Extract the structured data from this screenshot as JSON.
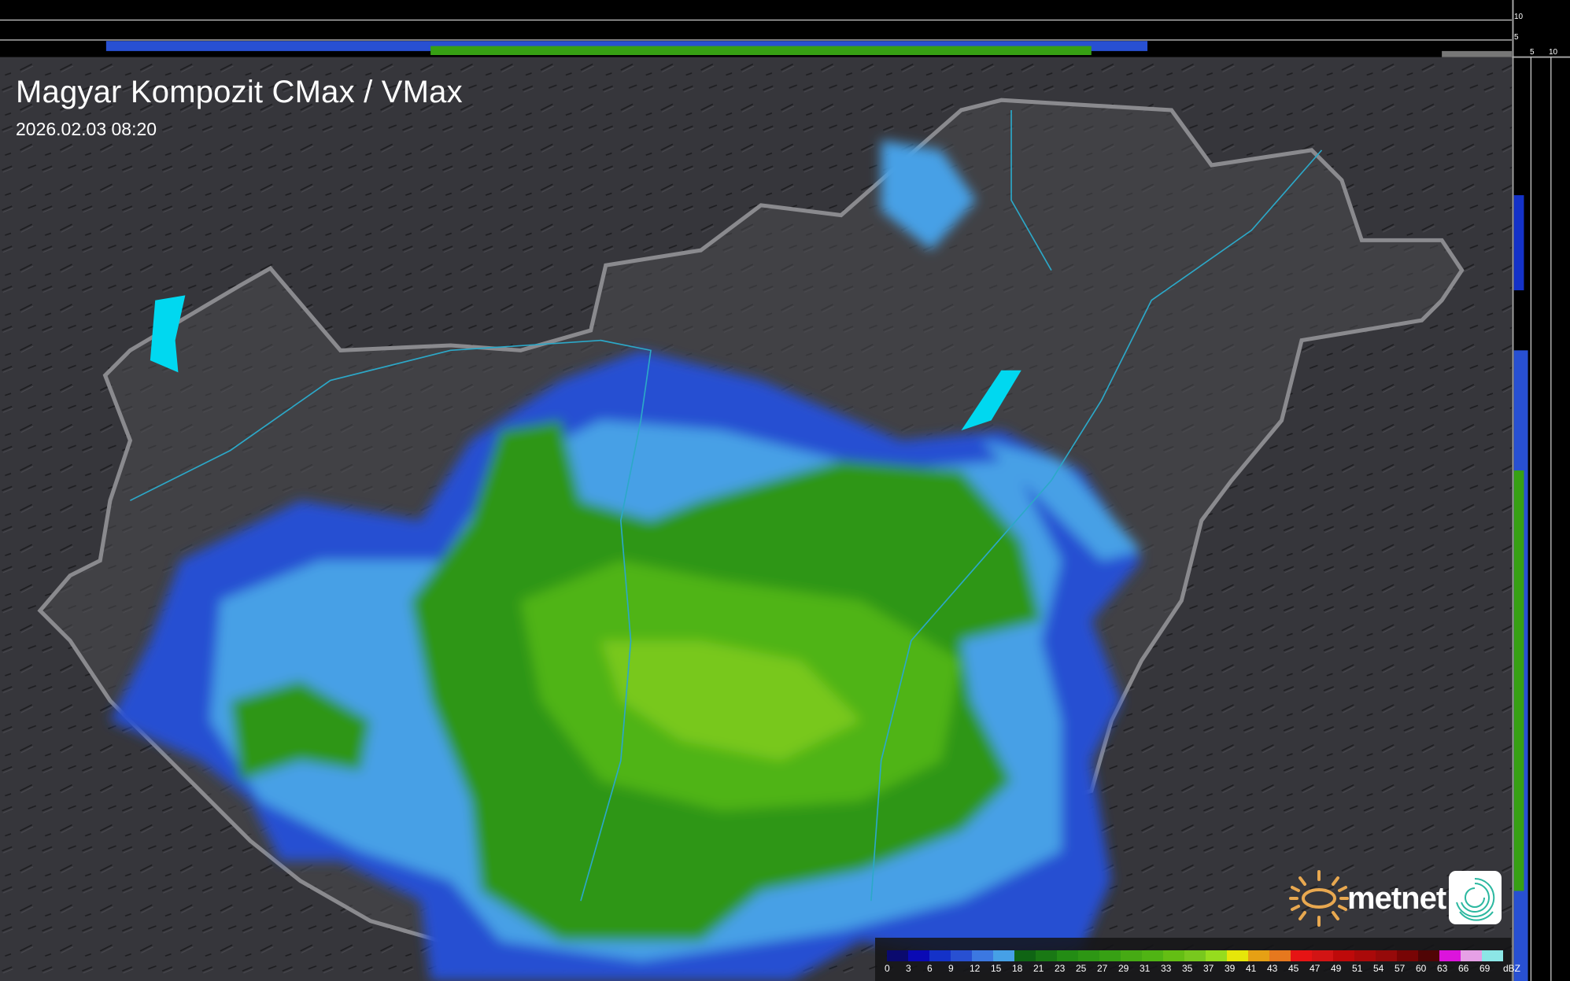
{
  "header": {
    "title": "Magyar Kompozit CMax / VMax",
    "timestamp": "2026.02.03 08:20"
  },
  "side_profiles": {
    "top_axis_labels": [
      "10",
      "5"
    ],
    "right_axis_labels": [
      "5",
      "10"
    ]
  },
  "legend": {
    "unit": "dBZ",
    "labels": [
      "0",
      "3",
      "6",
      "9",
      "12",
      "15",
      "18",
      "21",
      "23",
      "25",
      "27",
      "29",
      "31",
      "33",
      "35",
      "37",
      "39",
      "41",
      "43",
      "45",
      "47",
      "49",
      "51",
      "54",
      "57",
      "60",
      "63",
      "66",
      "69"
    ],
    "colors": [
      "#0a0a6e",
      "#0a0ab4",
      "#1432c8",
      "#2850d2",
      "#3c78e1",
      "#46a0e6",
      "#0f6414",
      "#197814",
      "#238c14",
      "#2d9614",
      "#37a014",
      "#46aa14",
      "#50b414",
      "#64be14",
      "#78c81e",
      "#96dc1e",
      "#e6e60a",
      "#e6a014",
      "#e6781e",
      "#e61414",
      "#d21414",
      "#be0a0a",
      "#aa0a0a",
      "#960a0a",
      "#780505",
      "#500505",
      "#dc14dc",
      "#e6a0e6",
      "#8ce6e6"
    ]
  },
  "branding": {
    "logo_text": "metnet",
    "logo_icon": "sun-icon",
    "app_icon": "radar-swirl-icon",
    "accent": "#e8a850"
  }
}
